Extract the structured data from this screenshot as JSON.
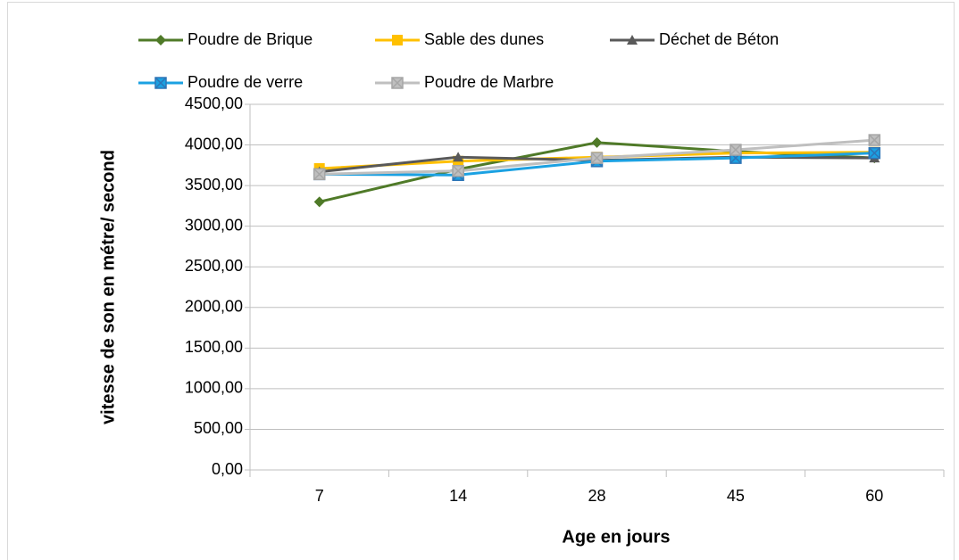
{
  "chart_data": {
    "type": "line",
    "x_label": "Age en jours",
    "y_label": "vitesse de son en métre/ second",
    "categories": [
      "7",
      "14",
      "28",
      "45",
      "60"
    ],
    "series": [
      {
        "name": "Poudre de Brique",
        "color": "#4f7a28",
        "marker": "diamond",
        "values": [
          3300,
          3700,
          4030,
          3920,
          3840
        ]
      },
      {
        "name": "Sable des dunes",
        "color": "#ffc000",
        "marker": "square",
        "values": [
          3710,
          3800,
          3850,
          3900,
          3910
        ]
      },
      {
        "name": "Déchet de Béton",
        "color": "#595959",
        "marker": "triangle",
        "values": [
          3670,
          3850,
          3810,
          3850,
          3840
        ]
      },
      {
        "name": "Poudre de verre",
        "color": "#1ba1e2",
        "marker": "square-x",
        "values": [
          3640,
          3630,
          3800,
          3840,
          3900
        ]
      },
      {
        "name": "Poudre de Marbre",
        "color": "#bfbfbf",
        "marker": "square-x",
        "values": [
          3640,
          3680,
          3840,
          3940,
          4060
        ]
      }
    ],
    "ylim": [
      0,
      4500
    ],
    "yticks": [
      {
        "value": 0,
        "label": "0,00"
      },
      {
        "value": 500,
        "label": "500,00"
      },
      {
        "value": 1000,
        "label": "1000,00"
      },
      {
        "value": 1500,
        "label": "1500,00"
      },
      {
        "value": 2000,
        "label": "2000,00"
      },
      {
        "value": 2500,
        "label": "2500,00"
      },
      {
        "value": 3000,
        "label": "3000,00"
      },
      {
        "value": 3500,
        "label": "3500,00"
      },
      {
        "value": 4000,
        "label": "4000,00"
      },
      {
        "value": 4500,
        "label": "4500,00"
      }
    ],
    "grid": true,
    "legend": "top"
  }
}
